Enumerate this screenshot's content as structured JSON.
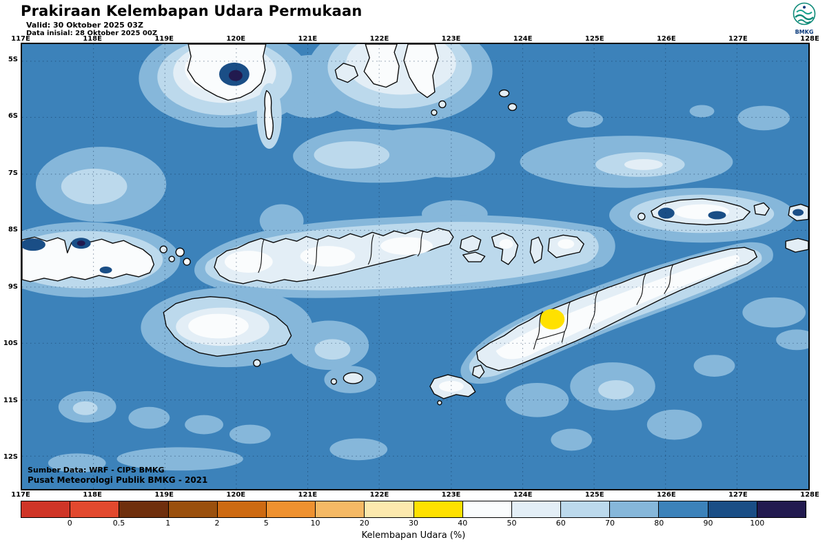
{
  "header": {
    "title": "Prakiraan Kelembapan Udara Permukaan",
    "valid": "Valid: 30 Oktober 2025 03Z",
    "init": "Data inisial: 28 Oktober 2025 00Z",
    "logo_label": "BMKG"
  },
  "map": {
    "lon_labels": [
      "117E",
      "118E",
      "119E",
      "120E",
      "121E",
      "122E",
      "123E",
      "124E",
      "125E",
      "126E",
      "127E",
      "128E"
    ],
    "lat_labels": [
      "5S",
      "6S",
      "7S",
      "8S",
      "9S",
      "10S",
      "11S",
      "12S"
    ],
    "source_line1": "Sumber Data: WRF - CIPS BMKG",
    "source_line2": "Pusat Meteorologi Publik BMKG - 2021"
  },
  "colorbar": {
    "title": "Kelembapan Udara (%)",
    "tick_labels": [
      "0",
      "0.5",
      "1",
      "2",
      "5",
      "10",
      "20",
      "30",
      "40",
      "50",
      "60",
      "70",
      "80",
      "90",
      "100"
    ],
    "colors": [
      "#cf3527",
      "#e2492e",
      "#6f2f0d",
      "#9a500e",
      "#cd6a12",
      "#ee9130",
      "#f5b965",
      "#fce9ae",
      "#ffe100",
      "#fafcfd",
      "#e3eef6",
      "#bcd9ec",
      "#86b7da",
      "#3c82ba",
      "#1a4e86",
      "#221a4f"
    ]
  },
  "chart_data": {
    "type": "heatmap",
    "title": "Prakiraan Kelembapan Udara Permukaan",
    "variable": "Kelembapan Udara (%)",
    "valid_time": "30 Oktober 2025 03Z",
    "init_time": "28 Oktober 2025 00Z",
    "model": "WRF - CIPS BMKG",
    "x_ticks": [
      "117E",
      "118E",
      "119E",
      "120E",
      "121E",
      "122E",
      "123E",
      "124E",
      "125E",
      "126E",
      "127E",
      "128E"
    ],
    "y_ticks": [
      "5S",
      "6S",
      "7S",
      "8S",
      "9S",
      "10S",
      "11S",
      "12S"
    ],
    "levels": [
      0,
      0.5,
      1,
      2,
      5,
      10,
      20,
      30,
      40,
      50,
      60,
      70,
      80,
      90,
      100
    ],
    "legend_position": "bottom",
    "grid": "dotted graticule every 1 degree",
    "observations": [
      {
        "region": "open ocean over most of the domain",
        "humidity_percent": "80-90"
      },
      {
        "region": "scattered sea patches (Flores Sea, Savu Sea, south of Timor)",
        "humidity_percent": "70-80"
      },
      {
        "region": "coastal fringes of islands",
        "humidity_percent": "50-70"
      },
      {
        "region": "interiors of S. Sulawesi tip, Flores, Sumba, Timor, Rote",
        "humidity_percent": "40-50"
      },
      {
        "region": "small spot in central West Timor",
        "humidity_percent": "30-40"
      },
      {
        "region": "dark spots: S. Sulawesi, E. Sumbawa north coast, Wetar, far-east islands",
        "humidity_percent": "90-100+"
      }
    ]
  }
}
